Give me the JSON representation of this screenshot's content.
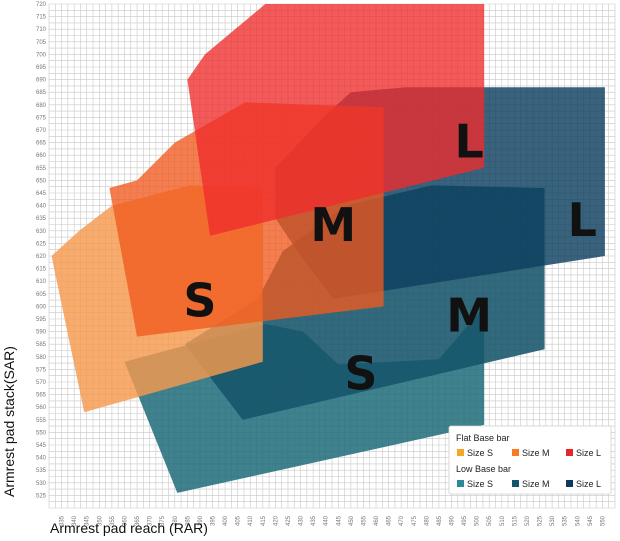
{
  "chart_data": {
    "type": "area",
    "xlabel": "Armrest pad reach (RAR)",
    "ylabel": "Armrest pad stack(SAR)",
    "xlim": [
      330,
      555
    ],
    "ylim": [
      520,
      720
    ],
    "xticks": [
      335,
      340,
      345,
      350,
      355,
      360,
      365,
      370,
      375,
      380,
      385,
      390,
      395,
      400,
      405,
      410,
      415,
      420,
      425,
      430,
      435,
      440,
      445,
      450,
      455,
      460,
      465,
      470,
      475,
      480,
      485,
      490,
      495,
      500,
      505,
      510,
      515,
      520,
      525,
      530,
      535,
      540,
      545,
      550
    ],
    "yticks": [
      525,
      530,
      535,
      540,
      545,
      550,
      555,
      560,
      565,
      570,
      575,
      580,
      585,
      590,
      595,
      600,
      605,
      610,
      615,
      620,
      625,
      630,
      635,
      640,
      645,
      650,
      655,
      660,
      665,
      670,
      675,
      680,
      685,
      690,
      695,
      700,
      705,
      710,
      715,
      720
    ],
    "grid": true,
    "legend_placement": "bottom-right",
    "legend_groups": [
      {
        "title": "Flat Base bar",
        "items": [
          "Size S",
          "Size M",
          "Size L"
        ]
      },
      {
        "title": "Low Base bar",
        "items": [
          "Size S",
          "Size M",
          "Size L"
        ]
      }
    ],
    "series": [
      {
        "group": "Low Base bar",
        "name": "Size S",
        "label": "S",
        "color": "#1f6b7a",
        "opacity": 0.85,
        "points": [
          [
            381,
            526
          ],
          [
            503,
            553
          ],
          [
            503,
            600
          ],
          [
            485,
            579
          ],
          [
            445,
            577
          ],
          [
            431,
            590
          ],
          [
            416,
            593
          ],
          [
            360,
            578
          ]
        ],
        "label_at": [
          454,
          567
        ]
      },
      {
        "group": "Low Base bar",
        "name": "Size M",
        "label": "M",
        "color": "#16546a",
        "opacity": 0.88,
        "points": [
          [
            407,
            555
          ],
          [
            527,
            583
          ],
          [
            527,
            647
          ],
          [
            482,
            648
          ],
          [
            448,
            640
          ],
          [
            423,
            622
          ],
          [
            413,
            603
          ],
          [
            384,
            585
          ]
        ],
        "label_at": [
          497,
          590
        ]
      },
      {
        "group": "Low Base bar",
        "name": "Size L",
        "label": "L",
        "color": "#0d3f5f",
        "opacity": 0.82,
        "points": [
          [
            443,
            603
          ],
          [
            551,
            620
          ],
          [
            551,
            687
          ],
          [
            472,
            687
          ],
          [
            450,
            685
          ],
          [
            440,
            676
          ],
          [
            420,
            655
          ],
          [
            420,
            635
          ],
          [
            430,
            620
          ]
        ],
        "label_at": [
          542,
          628
        ]
      },
      {
        "group": "Flat Base bar",
        "name": "Size S",
        "label": "S",
        "color": "#f59a4e",
        "opacity": 0.82,
        "points": [
          [
            344,
            558
          ],
          [
            415,
            578
          ],
          [
            415,
            647
          ],
          [
            386,
            648
          ],
          [
            355,
            640
          ],
          [
            342,
            630
          ],
          [
            331,
            620
          ]
        ],
        "label_at": [
          390,
          596
        ]
      },
      {
        "group": "Flat Base bar",
        "name": "Size M",
        "label": "M",
        "color": "#f15a1e",
        "opacity": 0.78,
        "points": [
          [
            365,
            588
          ],
          [
            463,
            600
          ],
          [
            463,
            679
          ],
          [
            408,
            681
          ],
          [
            380,
            665
          ],
          [
            365,
            650
          ],
          [
            354,
            647
          ]
        ],
        "label_at": [
          443,
          626
        ]
      },
      {
        "group": "Flat Base bar",
        "name": "Size L",
        "label": "L",
        "color": "#ef2c2c",
        "opacity": 0.78,
        "points": [
          [
            394,
            628
          ],
          [
            503,
            655
          ],
          [
            503,
            720
          ],
          [
            416,
            720
          ],
          [
            392,
            700
          ],
          [
            385,
            690
          ]
        ],
        "label_at": [
          497,
          659
        ]
      }
    ]
  }
}
